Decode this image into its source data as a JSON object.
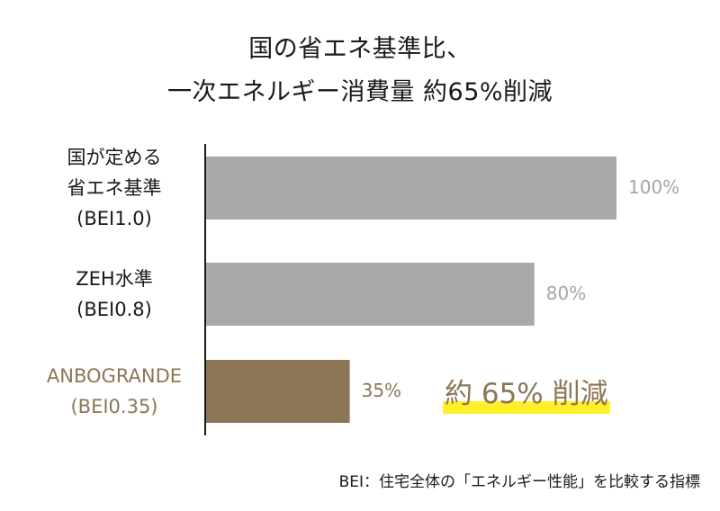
{
  "chart_data": {
    "type": "bar",
    "orientation": "horizontal",
    "title_lines": [
      "国の省エネ基準比、",
      "一次エネルギー消費量 約65%削減"
    ],
    "categories": [
      {
        "lines": [
          "国が定める",
          "省エネ基準",
          "(BEI1.0)"
        ],
        "value": 100,
        "label": "100%",
        "color": "#a9a9a9",
        "label_color": "#1a1a1a"
      },
      {
        "lines": [
          "ZEH水準",
          "(BEI0.8)"
        ],
        "value": 80,
        "label": "80%",
        "color": "#a9a9a9",
        "label_color": "#1a1a1a"
      },
      {
        "lines": [
          "ANBOGRANDE",
          "(BEI0.35)"
        ],
        "value": 35,
        "label": "35%",
        "color": "#8c7656",
        "label_color": "#8c7656"
      }
    ],
    "xlim": [
      0,
      100
    ],
    "annotation": "約 65% 削減",
    "footnote": "BEI：住宅全体の「エネルギー性能」を比較する指標",
    "highlight_color": "#fff02a",
    "grid": false
  }
}
